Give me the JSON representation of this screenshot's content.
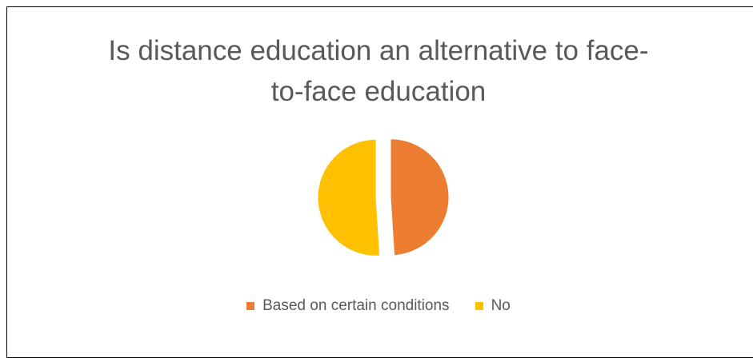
{
  "chart_data": {
    "type": "pie",
    "title_lines": [
      "Is distance education an alternative to face-",
      "to-face education"
    ],
    "slices": [
      {
        "label": "Based on certain conditions",
        "value": 49,
        "color": "#ED7D31"
      },
      {
        "label": "No",
        "value": 51,
        "color": "#FFC000"
      }
    ],
    "legend": {
      "position": "bottom"
    }
  }
}
